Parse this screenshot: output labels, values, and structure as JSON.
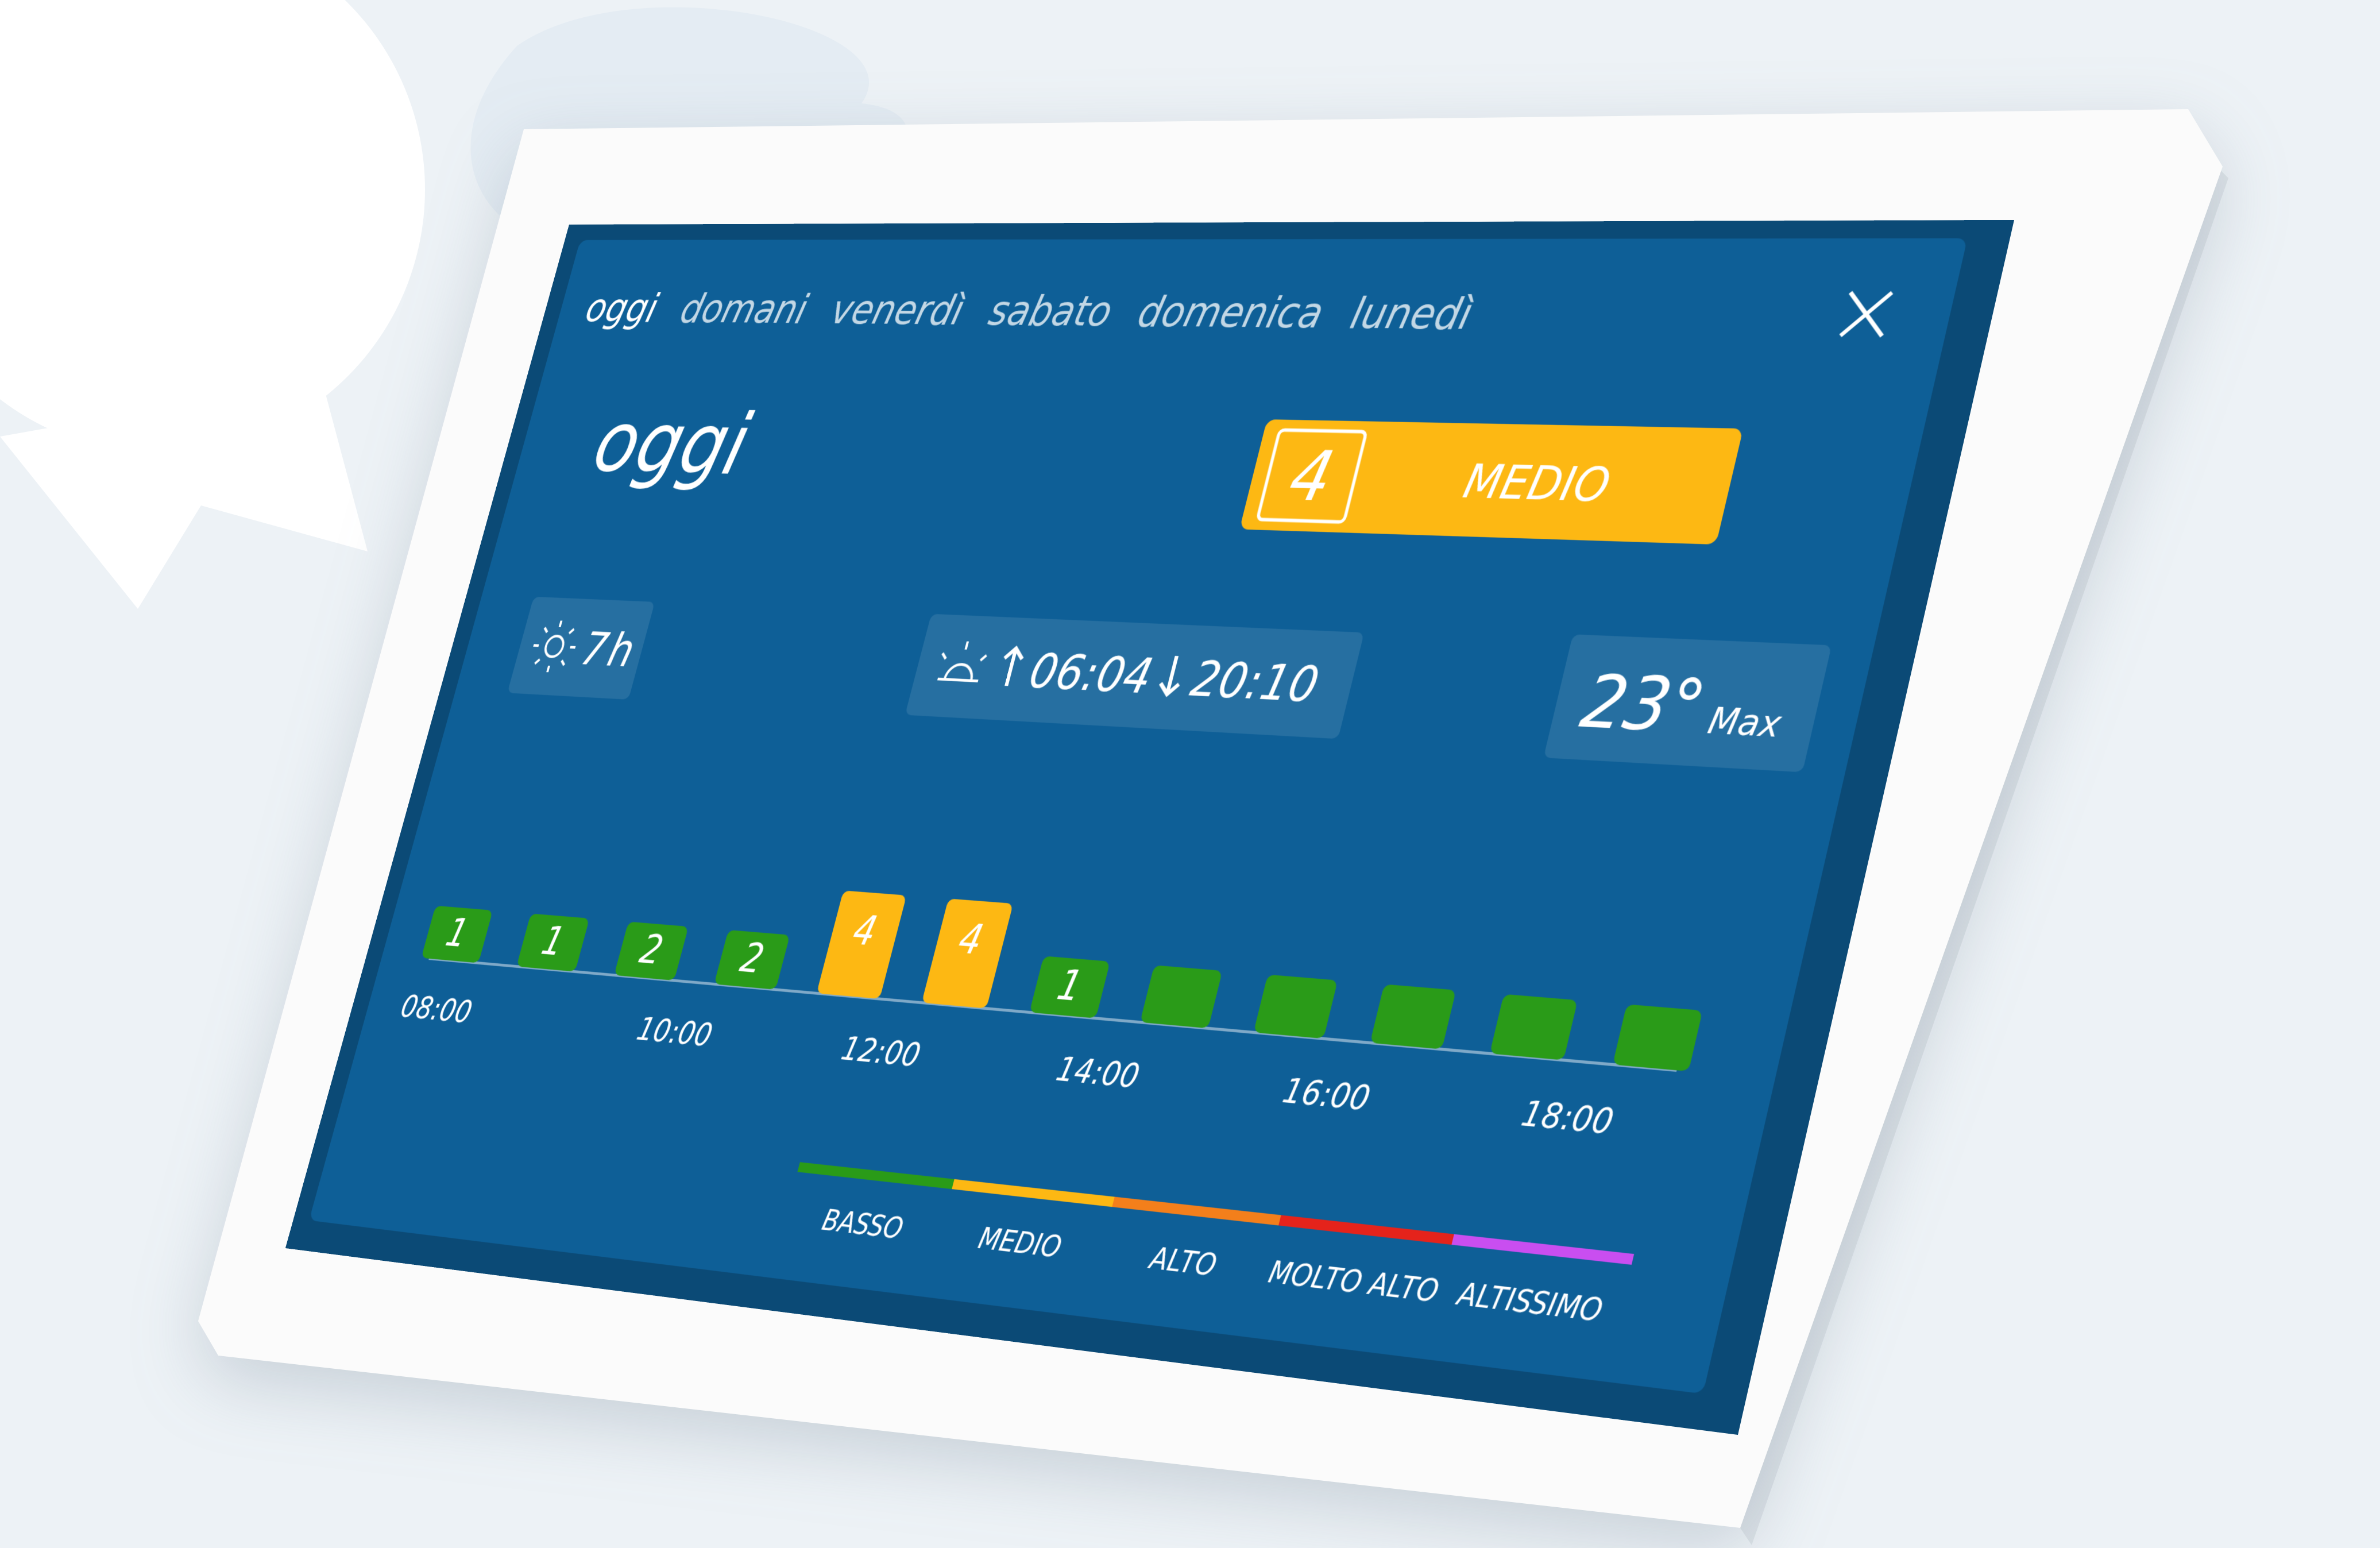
{
  "tabs": [
    "oggi",
    "domani",
    "venerdì",
    "sabato",
    "domenica",
    "lunedì"
  ],
  "day_title": "oggi",
  "uv_badge": {
    "value": "4",
    "label": "MEDIO"
  },
  "sun_hours": {
    "value": "7",
    "unit": "h"
  },
  "sun_times": {
    "sunrise": "06:04",
    "sunset": "20:10"
  },
  "temperature": {
    "value": "23°",
    "label": "Max"
  },
  "hourly": {
    "levels": [
      "1",
      "1",
      "2",
      "2",
      "4",
      "4",
      "1",
      null,
      null,
      null,
      null,
      null
    ],
    "times": [
      "08:00",
      "10:00",
      "12:00",
      "14:00",
      "16:00",
      "18:00"
    ]
  },
  "legend": [
    "BASSO",
    "MEDIO",
    "ALTO",
    "MOLTO ALTO",
    "ALTISSIMO"
  ]
}
